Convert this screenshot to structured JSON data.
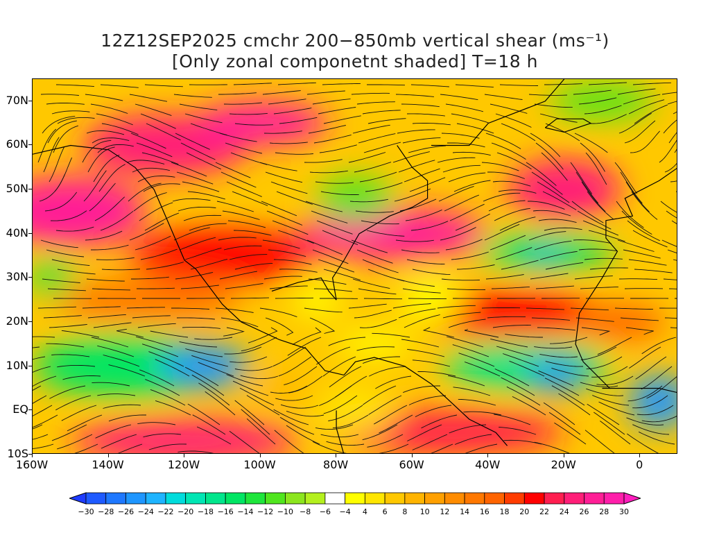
{
  "title": {
    "line1": "12Z12SEP2025 cmchr 200−850mb vertical shear (ms⁻¹)",
    "line2": "[Only zonal componetnt shaded] T=18 h"
  },
  "map": {
    "lat_labels": [
      {
        "value": 70,
        "label": "70N"
      },
      {
        "value": 60,
        "label": "60N"
      },
      {
        "value": 50,
        "label": "50N"
      },
      {
        "value": 40,
        "label": "40N"
      },
      {
        "value": 30,
        "label": "30N"
      },
      {
        "value": 20,
        "label": "20N"
      },
      {
        "value": 10,
        "label": "10N"
      },
      {
        "value": 0,
        "label": "EQ"
      },
      {
        "value": -10,
        "label": "10S"
      }
    ],
    "lon_labels": [
      {
        "value": -160,
        "label": "160W"
      },
      {
        "value": -140,
        "label": "140W"
      },
      {
        "value": -120,
        "label": "120W"
      },
      {
        "value": -100,
        "label": "100W"
      },
      {
        "value": -80,
        "label": "80W"
      },
      {
        "value": -60,
        "label": "60W"
      },
      {
        "value": -40,
        "label": "40W"
      },
      {
        "value": -20,
        "label": "20W"
      },
      {
        "value": 0,
        "label": "0"
      }
    ],
    "lon_range": [
      -160,
      10
    ],
    "lat_range": [
      -10,
      75
    ],
    "shading_blobs": [
      {
        "lon": -150,
        "lat": 45,
        "rx": 20,
        "ry": 8,
        "value": 28
      },
      {
        "lon": -125,
        "lat": 60,
        "rx": 22,
        "ry": 7,
        "value": 26
      },
      {
        "lon": -100,
        "lat": 65,
        "rx": 18,
        "ry": 5,
        "value": 28
      },
      {
        "lon": -110,
        "lat": 35,
        "rx": 25,
        "ry": 6,
        "value": 22
      },
      {
        "lon": -130,
        "lat": 25,
        "rx": 25,
        "ry": 5,
        "value": 16
      },
      {
        "lon": -65,
        "lat": 40,
        "rx": 25,
        "ry": 6,
        "value": 28
      },
      {
        "lon": -20,
        "lat": 50,
        "rx": 15,
        "ry": 7,
        "value": 26
      },
      {
        "lon": -35,
        "lat": 22,
        "rx": 25,
        "ry": 5,
        "value": 22
      },
      {
        "lon": -5,
        "lat": 20,
        "rx": 12,
        "ry": 4,
        "value": 18
      },
      {
        "lon": -120,
        "lat": -7,
        "rx": 30,
        "ry": 5,
        "value": 26
      },
      {
        "lon": -50,
        "lat": -5,
        "rx": 30,
        "ry": 5,
        "value": 24
      },
      {
        "lon": -135,
        "lat": 10,
        "rx": 25,
        "ry": 7,
        "value": -14
      },
      {
        "lon": -115,
        "lat": 10,
        "rx": 12,
        "ry": 5,
        "value": -24
      },
      {
        "lon": -30,
        "lat": 10,
        "rx": 22,
        "ry": 5,
        "value": -16
      },
      {
        "lon": -22,
        "lat": 8,
        "rx": 8,
        "ry": 4,
        "value": -24
      },
      {
        "lon": 5,
        "lat": 2,
        "rx": 8,
        "ry": 6,
        "value": -24
      },
      {
        "lon": -25,
        "lat": 36,
        "rx": 18,
        "ry": 4,
        "value": -14
      },
      {
        "lon": -25,
        "lat": 35,
        "rx": 6,
        "ry": 2,
        "value": -22
      },
      {
        "lon": -75,
        "lat": 48,
        "rx": 10,
        "ry": 5,
        "value": -10
      },
      {
        "lon": -155,
        "lat": 30,
        "rx": 6,
        "ry": 4,
        "value": -12
      },
      {
        "lon": -10,
        "lat": 70,
        "rx": 14,
        "ry": 4,
        "value": -10
      },
      {
        "lon": -55,
        "lat": 25,
        "rx": 8,
        "ry": 5,
        "value": 2
      },
      {
        "lon": -85,
        "lat": 25,
        "rx": 6,
        "ry": 4,
        "value": 2
      },
      {
        "lon": -70,
        "lat": 15,
        "rx": 10,
        "ry": 3,
        "value": 2
      },
      {
        "lon": -95,
        "lat": 5,
        "rx": 8,
        "ry": 3,
        "value": 10
      },
      {
        "lon": -75,
        "lat": 0,
        "rx": 10,
        "ry": 5,
        "value": 6
      }
    ]
  },
  "colorbar": {
    "labels": [
      "−30",
      "−28",
      "−26",
      "−24",
      "−22",
      "−20",
      "−18",
      "−16",
      "−14",
      "−12",
      "−10",
      "−8",
      "−6",
      "−4",
      "4",
      "6",
      "8",
      "10",
      "12",
      "14",
      "16",
      "18",
      "20",
      "22",
      "24",
      "26",
      "28",
      "30"
    ],
    "colors": [
      "#1e3cff",
      "#1e5aff",
      "#1e78ff",
      "#1e96ff",
      "#1eb4ff",
      "#00dcdc",
      "#00e6b4",
      "#00e68c",
      "#00e664",
      "#1ee63c",
      "#50e61e",
      "#8ce61e",
      "#b4f01e",
      "#ffffff",
      "#ffff00",
      "#ffe600",
      "#ffc800",
      "#ffb400",
      "#ffa000",
      "#ff8c00",
      "#ff7800",
      "#ff6400",
      "#ff3c00",
      "#ff0000",
      "#ff1e50",
      "#ff1e78",
      "#ff1e96",
      "#ff1eaa",
      "#ff1ebe"
    ]
  }
}
